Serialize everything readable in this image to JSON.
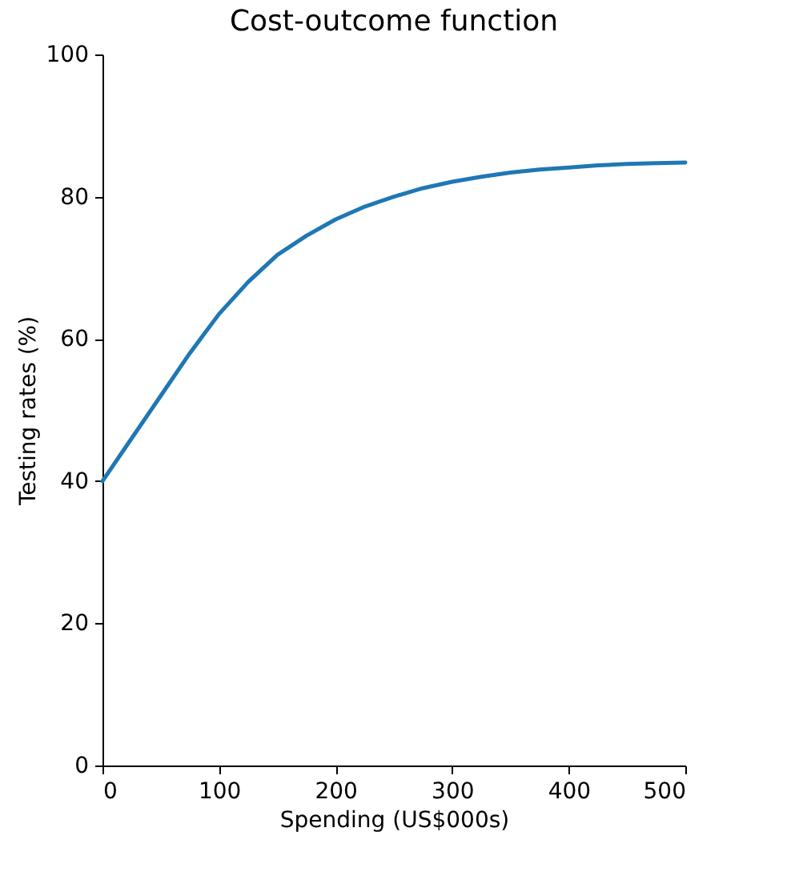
{
  "chart_data": {
    "type": "line",
    "title": "Cost-outcome function",
    "xlabel": "Spending (US$000s)",
    "ylabel": "Testing rates (%)",
    "x": [
      0,
      25,
      50,
      75,
      100,
      125,
      150,
      175,
      200,
      225,
      250,
      275,
      300,
      325,
      350,
      375,
      400,
      425,
      450,
      475,
      500
    ],
    "series": [
      {
        "color": "#1f77b4",
        "values": [
          40,
          46,
          52,
          58,
          63.5,
          68,
          71.8,
          74.5,
          76.8,
          78.6,
          80,
          81.2,
          82.1,
          82.8,
          83.4,
          83.8,
          84.1,
          84.4,
          84.6,
          84.7,
          84.8
        ]
      }
    ],
    "xlim": [
      0,
      500
    ],
    "xticks": [
      0,
      100,
      200,
      300,
      400,
      500
    ],
    "ylim": [
      0,
      100
    ],
    "yticks": [
      0,
      20,
      40,
      60,
      80,
      100
    ],
    "grid": false,
    "legend": false,
    "marker": "none",
    "line_style": "solid"
  }
}
